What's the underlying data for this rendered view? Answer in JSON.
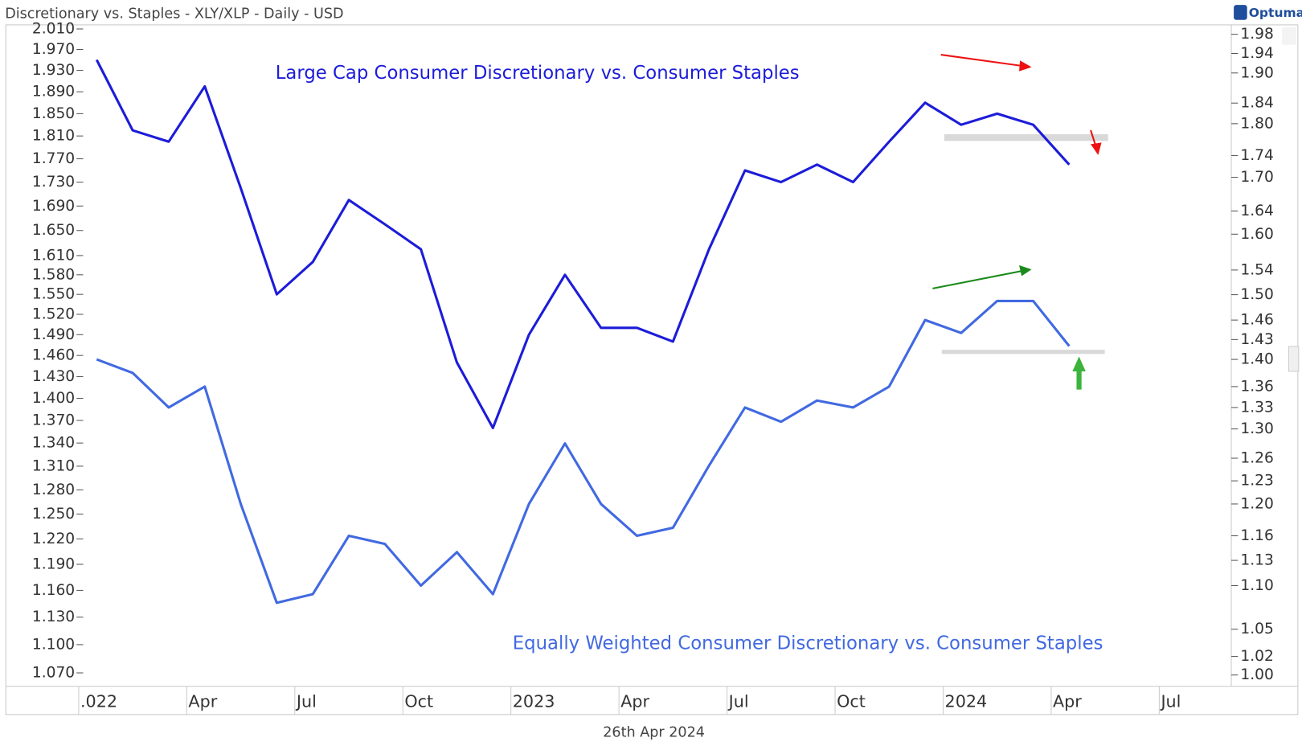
{
  "chart_data": {
    "type": "line",
    "title": "Discretionary vs. Staples - XLY/XLP - Daily - USD",
    "brand": "Optuma",
    "footer": "26th Apr 2024",
    "annotations": [
      "Large Cap Consumer Discretionary vs. Consumer Staples",
      "Equally Weighted Consumer Discretionary vs. Consumer Staples"
    ],
    "x": [
      "2022-01",
      "2022-02",
      "2022-03",
      "2022-04",
      "2022-05",
      "2022-06",
      "2022-07",
      "2022-08",
      "2022-09",
      "2022-10",
      "2022-11",
      "2022-12",
      "2023-01",
      "2023-02",
      "2023-03",
      "2023-04",
      "2023-05",
      "2023-06",
      "2023-07",
      "2023-08",
      "2023-09",
      "2023-10",
      "2023-11",
      "2023-12",
      "2024-01",
      "2024-02",
      "2024-03",
      "2024-04"
    ],
    "series": [
      {
        "name": "Large Cap Consumer Discretionary vs. Consumer Staples",
        "color": "#1c1cd9",
        "axis": "y",
        "values": [
          1.95,
          1.82,
          1.8,
          1.9,
          1.72,
          1.55,
          1.6,
          1.7,
          1.66,
          1.62,
          1.45,
          1.36,
          1.49,
          1.58,
          1.5,
          1.5,
          1.48,
          1.62,
          1.75,
          1.73,
          1.76,
          1.73,
          1.8,
          1.87,
          1.83,
          1.85,
          1.83,
          1.76
        ]
      },
      {
        "name": "Equally Weighted Consumer Discretionary vs. Consumer Staples",
        "color": "#4169e1",
        "axis": "y2",
        "values": [
          1.4,
          1.38,
          1.33,
          1.36,
          1.2,
          1.08,
          1.09,
          1.16,
          1.15,
          1.1,
          1.14,
          1.09,
          1.2,
          1.28,
          1.2,
          1.16,
          1.17,
          1.25,
          1.33,
          1.31,
          1.34,
          1.33,
          1.36,
          1.46,
          1.44,
          1.49,
          1.49,
          1.42
        ]
      }
    ],
    "xlim": [
      "2021-11",
      "2024-08"
    ],
    "xticks": [
      {
        "value": "2022-01",
        "label": ".022"
      },
      {
        "value": "2022-04",
        "label": "Apr"
      },
      {
        "value": "2022-07",
        "label": "Jul"
      },
      {
        "value": "2022-10",
        "label": "Oct"
      },
      {
        "value": "2023-01",
        "label": "2023"
      },
      {
        "value": "2023-04",
        "label": "Apr"
      },
      {
        "value": "2023-07",
        "label": "Jul"
      },
      {
        "value": "2023-10",
        "label": "Oct"
      },
      {
        "value": "2024-01",
        "label": "2024"
      },
      {
        "value": "2024-04",
        "label": "Apr"
      },
      {
        "value": "2024-07",
        "label": "Jul"
      }
    ],
    "log_scale": true,
    "ylim": [
      1.056,
      2.018
    ],
    "yticks": [
      {
        "value": 2.01,
        "label": "2.010"
      },
      {
        "value": 1.97,
        "label": "1.970"
      },
      {
        "value": 1.93,
        "label": "1.930"
      },
      {
        "value": 1.89,
        "label": "1.890"
      },
      {
        "value": 1.85,
        "label": "1.850"
      },
      {
        "value": 1.81,
        "label": "1.810"
      },
      {
        "value": 1.77,
        "label": "1.770"
      },
      {
        "value": 1.73,
        "label": "1.730"
      },
      {
        "value": 1.69,
        "label": "1.690"
      },
      {
        "value": 1.65,
        "label": "1.650"
      },
      {
        "value": 1.61,
        "label": "1.610"
      },
      {
        "value": 1.58,
        "label": "1.580"
      },
      {
        "value": 1.55,
        "label": "1.550"
      },
      {
        "value": 1.52,
        "label": "1.520"
      },
      {
        "value": 1.49,
        "label": "1.490"
      },
      {
        "value": 1.46,
        "label": "1.460"
      },
      {
        "value": 1.43,
        "label": "1.430"
      },
      {
        "value": 1.4,
        "label": "1.400"
      },
      {
        "value": 1.37,
        "label": "1.370"
      },
      {
        "value": 1.34,
        "label": "1.340"
      },
      {
        "value": 1.31,
        "label": "1.310"
      },
      {
        "value": 1.28,
        "label": "1.280"
      },
      {
        "value": 1.25,
        "label": "1.250"
      },
      {
        "value": 1.22,
        "label": "1.220"
      },
      {
        "value": 1.19,
        "label": "1.190"
      },
      {
        "value": 1.16,
        "label": "1.160"
      },
      {
        "value": 1.13,
        "label": "1.130"
      },
      {
        "value": 1.1,
        "label": "1.100"
      },
      {
        "value": 1.07,
        "label": "1.070"
      }
    ],
    "y2lim": [
      0.988,
      2.0
    ],
    "y2ticks": [
      1.98,
      1.94,
      {
        "value": 1.9,
        "label": "1.90"
      },
      1.84,
      {
        "value": 1.8,
        "label": "1.80"
      },
      1.74,
      {
        "value": 1.7,
        "label": "1.70"
      },
      1.64,
      {
        "value": 1.6,
        "label": "1.60"
      },
      1.54,
      {
        "value": 1.5,
        "label": "1.50"
      },
      1.46,
      1.43,
      {
        "value": 1.4,
        "label": "1.40"
      },
      1.36,
      1.33,
      {
        "value": 1.3,
        "label": "1.30"
      },
      1.26,
      1.23,
      {
        "value": 1.2,
        "label": "1.20"
      },
      1.16,
      1.13,
      {
        "value": 1.1,
        "label": "1.10"
      },
      1.05,
      1.02,
      {
        "value": 1,
        "label": "1.00"
      }
    ],
    "grid": false
  }
}
